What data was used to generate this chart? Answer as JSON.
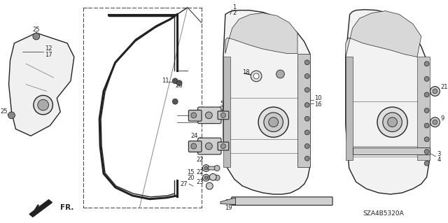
{
  "bg_color": "#ffffff",
  "line_color": "#222222",
  "fill_light": "#e8e8e8",
  "fill_mid": "#cccccc",
  "fill_dark": "#999999",
  "catalog_code": "SZA4B5320A",
  "figsize": [
    6.4,
    3.19
  ],
  "dpi": 100
}
